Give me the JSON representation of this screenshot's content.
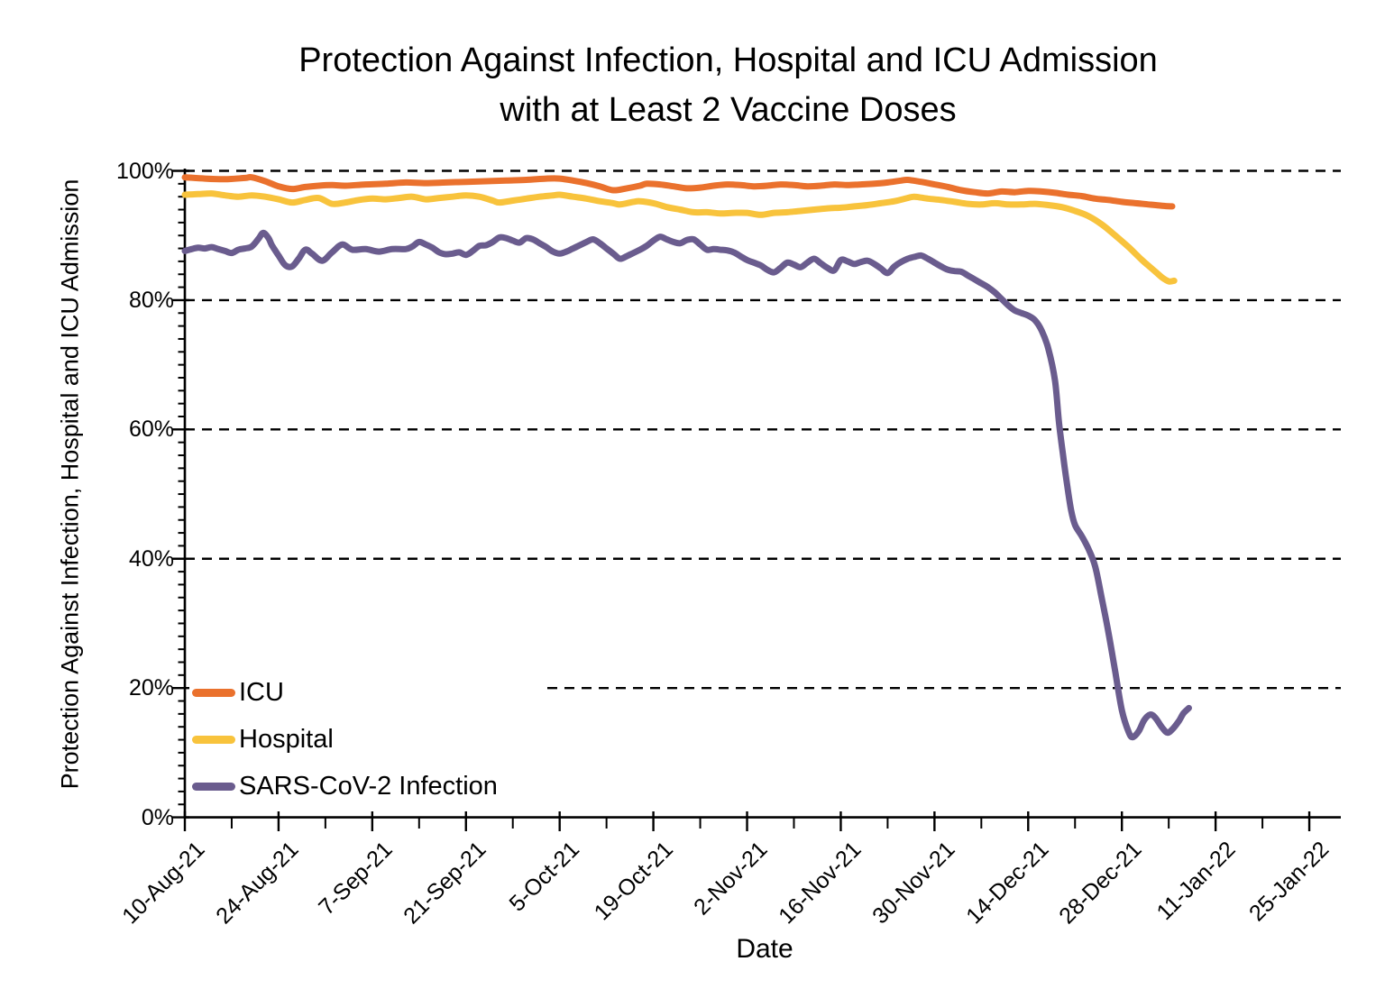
{
  "title": {
    "line1": "Protection Against Infection, Hospital and ICU Admission",
    "line2": "with at Least 2 Vaccine Doses"
  },
  "axes": {
    "y": {
      "label": "Protection Against Infection, Hospital and ICU Admission",
      "ticks": [
        "100%",
        "80%",
        "60%",
        "40%",
        "20%",
        "0%"
      ],
      "tick_values": [
        100,
        80,
        60,
        40,
        20,
        0
      ]
    },
    "x": {
      "label": "Date",
      "ticks": [
        "10-Aug-21",
        "24-Aug-21",
        "7-Sep-21",
        "21-Sep-21",
        "5-Oct-21",
        "19-Oct-21",
        "2-Nov-21",
        "16-Nov-21",
        "30-Nov-21",
        "14-Dec-21",
        "28-Dec-21",
        "11-Jan-22",
        "25-Jan-22"
      ]
    }
  },
  "legend": [
    {
      "label": "ICU",
      "color": "#EA712D"
    },
    {
      "label": "Hospital",
      "color": "#F8C33C"
    },
    {
      "label": "SARS-CoV-2 Infection",
      "color": "#6A5C8E"
    }
  ],
  "colors": {
    "icu": "#EA712D",
    "hospital": "#F8C33C",
    "infection": "#6A5C8E",
    "axis": "#000000",
    "grid": "#000000"
  },
  "chart_data": {
    "type": "line",
    "title": "Protection Against Infection, Hospital and ICU Admission with at Least 2 Vaccine Doses",
    "xlabel": "Date",
    "ylabel": "Protection Against Infection, Hospital and ICU Admission",
    "ylim": [
      0,
      100
    ],
    "y_unit": "%",
    "grid": "horizontal dashed at 20% intervals",
    "legend_position": "inside lower-left",
    "x_unit": "days since 10-Aug-2021",
    "x_tick_days": [
      0,
      14,
      28,
      42,
      56,
      70,
      84,
      98,
      112,
      126,
      140,
      154,
      168
    ],
    "x_tick_labels": [
      "10-Aug-21",
      "24-Aug-21",
      "7-Sep-21",
      "21-Sep-21",
      "5-Oct-21",
      "19-Oct-21",
      "2-Nov-21",
      "16-Nov-21",
      "30-Nov-21",
      "14-Dec-21",
      "28-Dec-21",
      "11-Jan-22",
      "25-Jan-22"
    ],
    "series": [
      {
        "name": "ICU",
        "color": "#EA712D",
        "points": [
          [
            0,
            99.0
          ],
          [
            3,
            98.8
          ],
          [
            6,
            98.7
          ],
          [
            9,
            98.9
          ],
          [
            10,
            99.0
          ],
          [
            12,
            98.4
          ],
          [
            14,
            97.6
          ],
          [
            16,
            97.2
          ],
          [
            18,
            97.5
          ],
          [
            20,
            97.7
          ],
          [
            22,
            97.8
          ],
          [
            24,
            97.7
          ],
          [
            27,
            97.9
          ],
          [
            30,
            98.0
          ],
          [
            33,
            98.2
          ],
          [
            36,
            98.1
          ],
          [
            39,
            98.2
          ],
          [
            42,
            98.3
          ],
          [
            45,
            98.4
          ],
          [
            48,
            98.5
          ],
          [
            51,
            98.6
          ],
          [
            54,
            98.8
          ],
          [
            56,
            98.8
          ],
          [
            58,
            98.5
          ],
          [
            60,
            98.1
          ],
          [
            62,
            97.6
          ],
          [
            64,
            97.0
          ],
          [
            66,
            97.3
          ],
          [
            68,
            97.7
          ],
          [
            69,
            98.0
          ],
          [
            71,
            97.9
          ],
          [
            73,
            97.6
          ],
          [
            75,
            97.3
          ],
          [
            77,
            97.4
          ],
          [
            79,
            97.7
          ],
          [
            81,
            97.9
          ],
          [
            83,
            97.8
          ],
          [
            85,
            97.6
          ],
          [
            87,
            97.7
          ],
          [
            89,
            97.9
          ],
          [
            91,
            97.8
          ],
          [
            93,
            97.6
          ],
          [
            95,
            97.7
          ],
          [
            97,
            97.9
          ],
          [
            99,
            97.8
          ],
          [
            101,
            97.9
          ],
          [
            103,
            98.0
          ],
          [
            105,
            98.2
          ],
          [
            107,
            98.5
          ],
          [
            108,
            98.6
          ],
          [
            110,
            98.3
          ],
          [
            112,
            97.9
          ],
          [
            114,
            97.5
          ],
          [
            116,
            97.0
          ],
          [
            118,
            96.7
          ],
          [
            120,
            96.5
          ],
          [
            122,
            96.8
          ],
          [
            124,
            96.7
          ],
          [
            126,
            96.9
          ],
          [
            128,
            96.8
          ],
          [
            130,
            96.6
          ],
          [
            132,
            96.3
          ],
          [
            134,
            96.1
          ],
          [
            136,
            95.7
          ],
          [
            138,
            95.5
          ],
          [
            140,
            95.2
          ],
          [
            142,
            95.0
          ],
          [
            144,
            94.8
          ],
          [
            146,
            94.6
          ],
          [
            147.5,
            94.5
          ]
        ]
      },
      {
        "name": "Hospital",
        "color": "#F8C33C",
        "points": [
          [
            0,
            96.3
          ],
          [
            2,
            96.4
          ],
          [
            4,
            96.5
          ],
          [
            6,
            96.2
          ],
          [
            8,
            96.0
          ],
          [
            10,
            96.2
          ],
          [
            12,
            96.0
          ],
          [
            14,
            95.6
          ],
          [
            16,
            95.1
          ],
          [
            18,
            95.5
          ],
          [
            20,
            95.8
          ],
          [
            22,
            94.9
          ],
          [
            24,
            95.1
          ],
          [
            26,
            95.5
          ],
          [
            28,
            95.7
          ],
          [
            30,
            95.6
          ],
          [
            32,
            95.8
          ],
          [
            34,
            96.0
          ],
          [
            36,
            95.6
          ],
          [
            38,
            95.8
          ],
          [
            40,
            96.0
          ],
          [
            42,
            96.2
          ],
          [
            44,
            96.0
          ],
          [
            46,
            95.4
          ],
          [
            47,
            95.1
          ],
          [
            49,
            95.4
          ],
          [
            51,
            95.7
          ],
          [
            53,
            96.0
          ],
          [
            55,
            96.2
          ],
          [
            56,
            96.3
          ],
          [
            58,
            96.0
          ],
          [
            60,
            95.7
          ],
          [
            62,
            95.3
          ],
          [
            64,
            95.0
          ],
          [
            65,
            94.8
          ],
          [
            67,
            95.2
          ],
          [
            68,
            95.3
          ],
          [
            70,
            95.0
          ],
          [
            72,
            94.4
          ],
          [
            74,
            94.0
          ],
          [
            76,
            93.6
          ],
          [
            78,
            93.6
          ],
          [
            80,
            93.4
          ],
          [
            82,
            93.5
          ],
          [
            84,
            93.5
          ],
          [
            86,
            93.2
          ],
          [
            88,
            93.5
          ],
          [
            90,
            93.6
          ],
          [
            92,
            93.8
          ],
          [
            94,
            94.0
          ],
          [
            96,
            94.2
          ],
          [
            98,
            94.3
          ],
          [
            100,
            94.5
          ],
          [
            102,
            94.7
          ],
          [
            104,
            95.0
          ],
          [
            106,
            95.3
          ],
          [
            108,
            95.8
          ],
          [
            109,
            96.0
          ],
          [
            111,
            95.7
          ],
          [
            113,
            95.5
          ],
          [
            115,
            95.2
          ],
          [
            117,
            94.9
          ],
          [
            119,
            94.8
          ],
          [
            121,
            95.0
          ],
          [
            123,
            94.8
          ],
          [
            125,
            94.8
          ],
          [
            127,
            94.9
          ],
          [
            129,
            94.7
          ],
          [
            131,
            94.4
          ],
          [
            133,
            93.8
          ],
          [
            135,
            93.0
          ],
          [
            137,
            91.7
          ],
          [
            139,
            90.0
          ],
          [
            141,
            88.2
          ],
          [
            143,
            86.2
          ],
          [
            145,
            84.4
          ],
          [
            146,
            83.5
          ],
          [
            147,
            82.9
          ],
          [
            147.8,
            83.0
          ]
        ]
      },
      {
        "name": "SARS-CoV-2 Infection",
        "color": "#6A5C8E",
        "points": [
          [
            0,
            87.6
          ],
          [
            1,
            87.9
          ],
          [
            2,
            88.1
          ],
          [
            3,
            88.0
          ],
          [
            4,
            88.2
          ],
          [
            5,
            87.9
          ],
          [
            6,
            87.6
          ],
          [
            7,
            87.3
          ],
          [
            8,
            87.8
          ],
          [
            9,
            88.0
          ],
          [
            10,
            88.3
          ],
          [
            11,
            89.5
          ],
          [
            11.7,
            90.4
          ],
          [
            12.5,
            89.6
          ],
          [
            13,
            88.5
          ],
          [
            14,
            86.9
          ],
          [
            15,
            85.4
          ],
          [
            16,
            85.2
          ],
          [
            17,
            86.4
          ],
          [
            18,
            87.8
          ],
          [
            19,
            87.2
          ],
          [
            20.5,
            86.1
          ],
          [
            22,
            87.4
          ],
          [
            23.5,
            88.6
          ],
          [
            25,
            87.8
          ],
          [
            27,
            87.9
          ],
          [
            29,
            87.5
          ],
          [
            31,
            87.9
          ],
          [
            33,
            87.9
          ],
          [
            34,
            88.3
          ],
          [
            35,
            89.0
          ],
          [
            36,
            88.6
          ],
          [
            37,
            88.1
          ],
          [
            38,
            87.4
          ],
          [
            39,
            87.1
          ],
          [
            40,
            87.2
          ],
          [
            41,
            87.4
          ],
          [
            42,
            87.0
          ],
          [
            43,
            87.6
          ],
          [
            44,
            88.4
          ],
          [
            45,
            88.5
          ],
          [
            46,
            89.0
          ],
          [
            47,
            89.7
          ],
          [
            48,
            89.6
          ],
          [
            49,
            89.2
          ],
          [
            50,
            88.9
          ],
          [
            51,
            89.6
          ],
          [
            52,
            89.4
          ],
          [
            53,
            88.8
          ],
          [
            54,
            88.2
          ],
          [
            55,
            87.5
          ],
          [
            56,
            87.2
          ],
          [
            57,
            87.5
          ],
          [
            58,
            88.0
          ],
          [
            60,
            89.0
          ],
          [
            61,
            89.4
          ],
          [
            62,
            88.8
          ],
          [
            63,
            88.0
          ],
          [
            64,
            87.2
          ],
          [
            65,
            86.4
          ],
          [
            66,
            86.8
          ],
          [
            67,
            87.3
          ],
          [
            68,
            87.8
          ],
          [
            69,
            88.4
          ],
          [
            70,
            89.2
          ],
          [
            71,
            89.8
          ],
          [
            72,
            89.4
          ],
          [
            73,
            89.0
          ],
          [
            74,
            88.8
          ],
          [
            75,
            89.3
          ],
          [
            76,
            89.4
          ],
          [
            77,
            88.6
          ],
          [
            78,
            87.8
          ],
          [
            79,
            87.9
          ],
          [
            80,
            87.8
          ],
          [
            81,
            87.7
          ],
          [
            82,
            87.4
          ],
          [
            83,
            86.8
          ],
          [
            84,
            86.2
          ],
          [
            85,
            85.8
          ],
          [
            86,
            85.4
          ],
          [
            87,
            84.7
          ],
          [
            88,
            84.3
          ],
          [
            89,
            85.0
          ],
          [
            90,
            85.8
          ],
          [
            91,
            85.5
          ],
          [
            92,
            85.1
          ],
          [
            93,
            85.8
          ],
          [
            94,
            86.4
          ],
          [
            95,
            85.7
          ],
          [
            96,
            85.0
          ],
          [
            97,
            84.6
          ],
          [
            98,
            86.2
          ],
          [
            99,
            86.0
          ],
          [
            100,
            85.6
          ],
          [
            101,
            85.9
          ],
          [
            102,
            86.1
          ],
          [
            103,
            85.6
          ],
          [
            104,
            84.9
          ],
          [
            105,
            84.2
          ],
          [
            106,
            85.2
          ],
          [
            107,
            85.9
          ],
          [
            108,
            86.4
          ],
          [
            109,
            86.7
          ],
          [
            110,
            86.9
          ],
          [
            111,
            86.4
          ],
          [
            112,
            85.8
          ],
          [
            113,
            85.2
          ],
          [
            114,
            84.7
          ],
          [
            115,
            84.5
          ],
          [
            116,
            84.4
          ],
          [
            117,
            83.8
          ],
          [
            118,
            83.2
          ],
          [
            119,
            82.6
          ],
          [
            120,
            82.0
          ],
          [
            121,
            81.2
          ],
          [
            122,
            80.2
          ],
          [
            123,
            79.2
          ],
          [
            124,
            78.4
          ],
          [
            125,
            78.0
          ],
          [
            126,
            77.6
          ],
          [
            127,
            76.9
          ],
          [
            128,
            75.3
          ],
          [
            129,
            72.5
          ],
          [
            130,
            67.5
          ],
          [
            130.6,
            61.0
          ],
          [
            131.2,
            56.0
          ],
          [
            131.8,
            51.5
          ],
          [
            132.4,
            47.5
          ],
          [
            133,
            45.2
          ],
          [
            134,
            43.5
          ],
          [
            135,
            41.5
          ],
          [
            136,
            38.8
          ],
          [
            137,
            33.8
          ],
          [
            138,
            28.5
          ],
          [
            139,
            22.5
          ],
          [
            140,
            16.5
          ],
          [
            141,
            13.2
          ],
          [
            141.6,
            12.4
          ],
          [
            142.5,
            13.3
          ],
          [
            143.3,
            15.0
          ],
          [
            144.2,
            15.9
          ],
          [
            145,
            15.4
          ],
          [
            146,
            13.9
          ],
          [
            146.8,
            13.1
          ],
          [
            147.6,
            13.7
          ],
          [
            148.5,
            14.9
          ],
          [
            149.2,
            16.1
          ],
          [
            150,
            16.9
          ]
        ]
      }
    ]
  }
}
